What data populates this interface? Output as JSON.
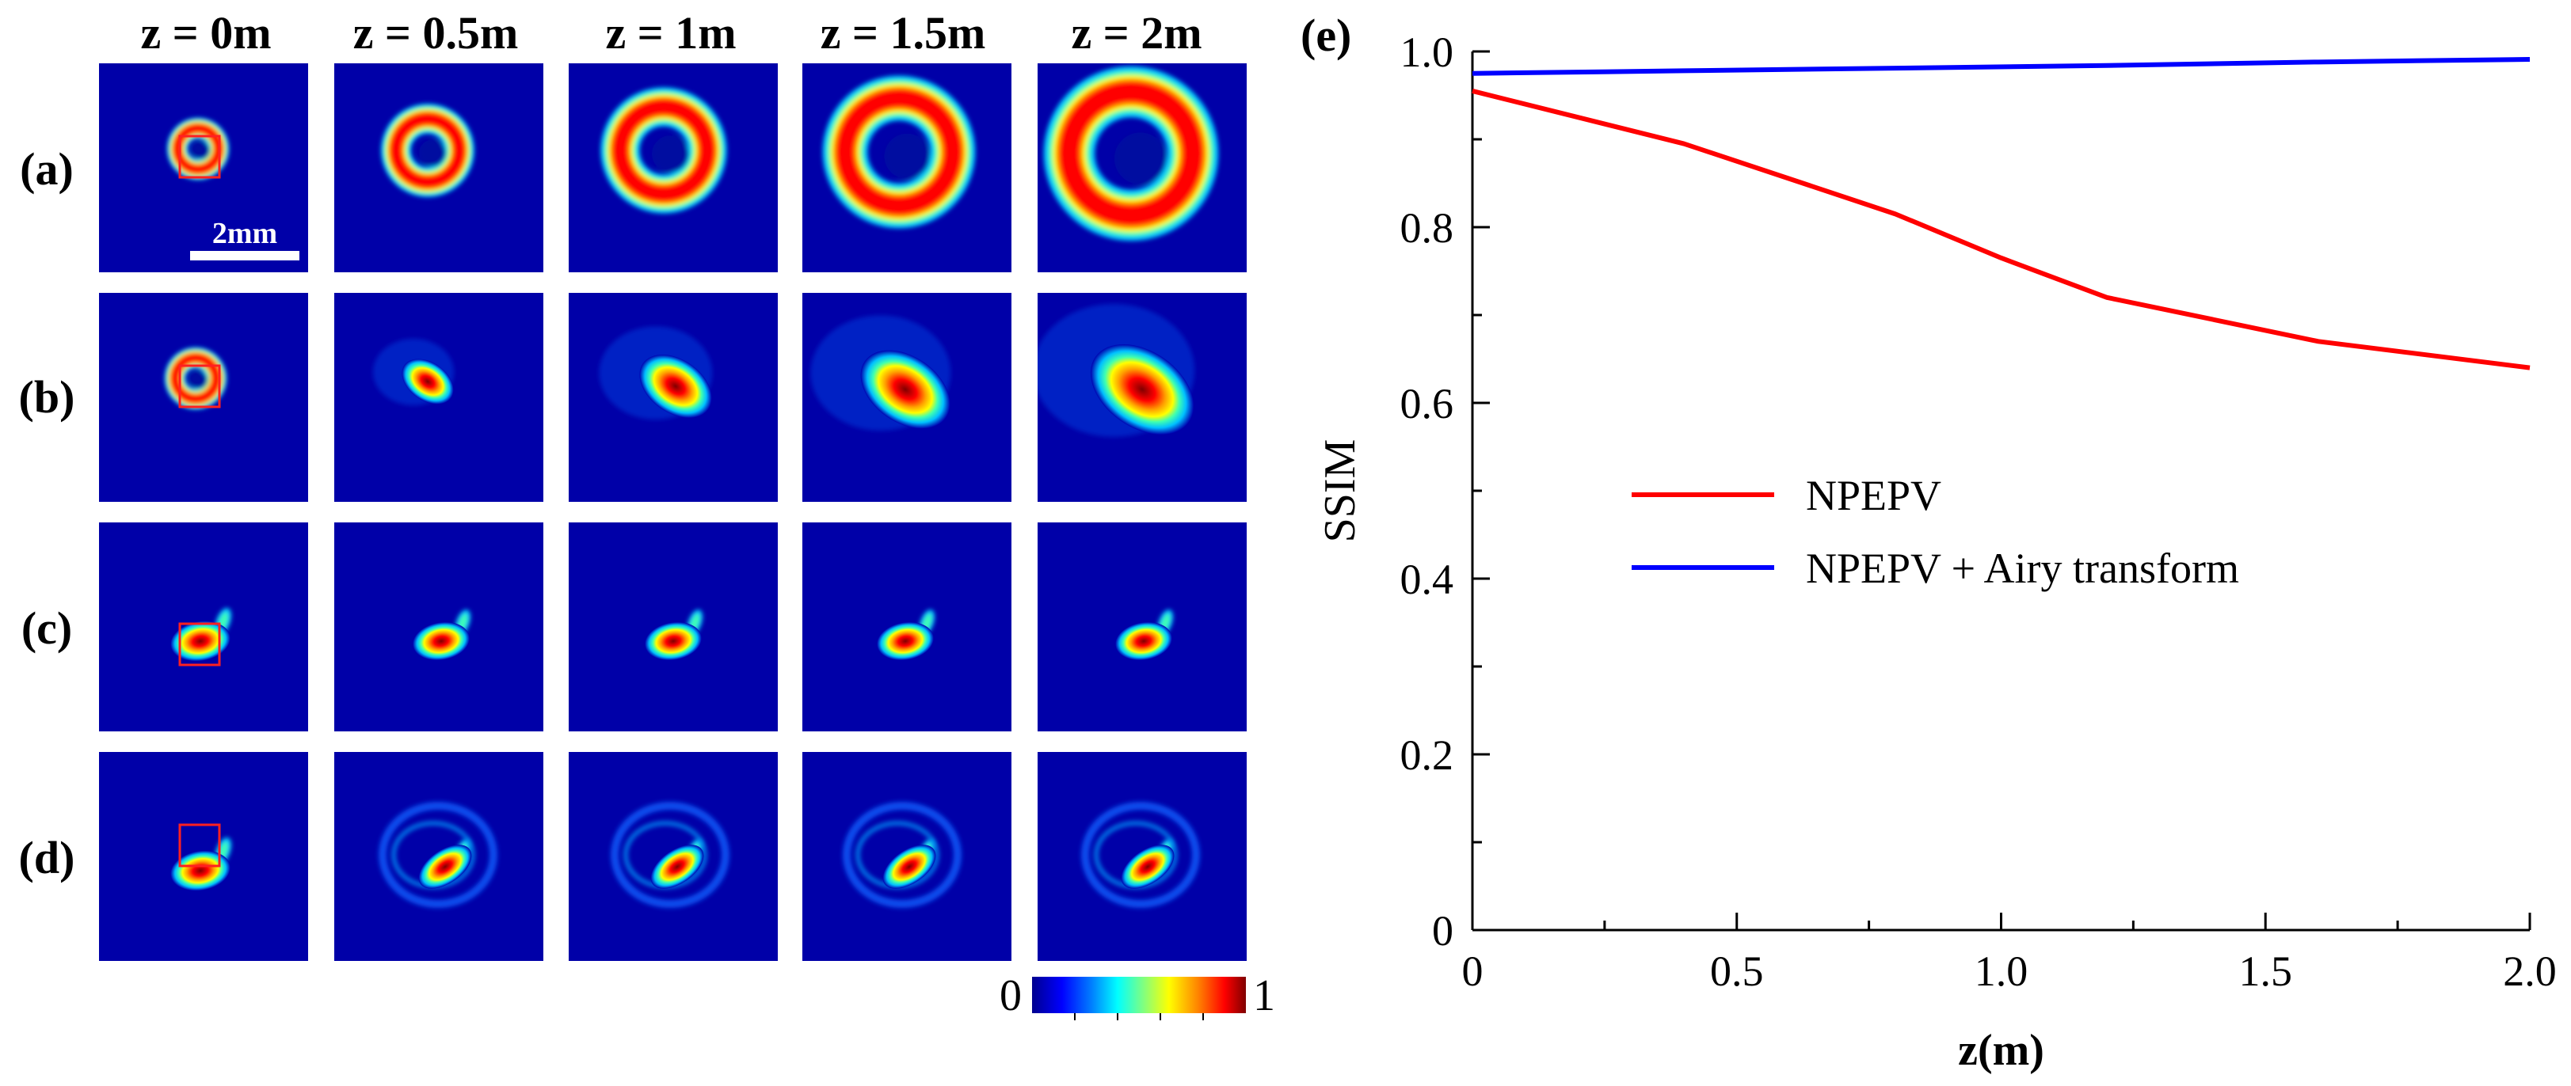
{
  "figure": {
    "column_titles": [
      "z = 0m",
      "z = 0.5m",
      "z = 1m",
      "z = 1.5m",
      "z = 2m"
    ],
    "row_labels": [
      "(a)",
      "(b)",
      "(c)",
      "(d)"
    ],
    "scale_bar_label": "2mm",
    "colorbar": {
      "min_label": "0",
      "max_label": "1"
    },
    "panel_e_label": "(e)"
  },
  "chart_data": {
    "type": "line",
    "xlabel": "z(m)",
    "ylabel": "SSIM",
    "xlim": [
      0,
      2.0
    ],
    "ylim": [
      0,
      1.0
    ],
    "xticks": [
      "0",
      "0.5",
      "1.0",
      "1.5",
      "2.0"
    ],
    "yticks": [
      "0",
      "0.2",
      "0.4",
      "0.6",
      "0.8",
      "1.0"
    ],
    "legend_position": "center",
    "series": [
      {
        "name": "NPEPV",
        "color": "#ff0000",
        "x": [
          0,
          0.4,
          0.8,
          1.0,
          1.2,
          1.6,
          2.0
        ],
        "y": [
          0.955,
          0.895,
          0.815,
          0.765,
          0.72,
          0.67,
          0.64
        ]
      },
      {
        "name": "NPEPV + Airy transform",
        "color": "#0000ff",
        "x": [
          0,
          0.4,
          0.8,
          1.2,
          1.6,
          2.0
        ],
        "y": [
          0.975,
          0.978,
          0.981,
          0.984,
          0.988,
          0.991
        ]
      }
    ]
  }
}
